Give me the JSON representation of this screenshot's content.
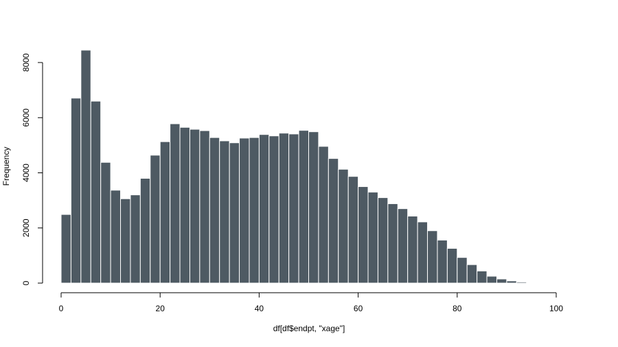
{
  "chart_data": {
    "type": "bar",
    "title": "",
    "xlabel": "df[df$endpt, \"xage\"]",
    "ylabel": "Frequency",
    "xlim": [
      0,
      100
    ],
    "ylim": [
      0,
      8500
    ],
    "bin_width": 2,
    "x_ticks": [
      0,
      20,
      40,
      60,
      80,
      100
    ],
    "y_ticks": [
      0,
      2000,
      4000,
      6000,
      8000
    ],
    "bar_color": "#4e5a63",
    "bar_edge_color": "#ffffff",
    "grid": false,
    "bins_start": [
      0,
      2,
      4,
      6,
      8,
      10,
      12,
      14,
      16,
      18,
      20,
      22,
      24,
      26,
      28,
      30,
      32,
      34,
      36,
      38,
      40,
      42,
      44,
      46,
      48,
      50,
      52,
      54,
      56,
      58,
      60,
      62,
      64,
      66,
      68,
      70,
      72,
      74,
      76,
      78,
      80,
      82,
      84,
      86,
      88,
      90,
      92,
      94
    ],
    "values": [
      2490,
      6710,
      8450,
      6600,
      4380,
      3370,
      3060,
      3200,
      3800,
      4640,
      5130,
      5780,
      5650,
      5580,
      5530,
      5280,
      5160,
      5090,
      5260,
      5280,
      5390,
      5340,
      5440,
      5410,
      5540,
      5490,
      4960,
      4520,
      4130,
      3870,
      3500,
      3300,
      3100,
      2880,
      2700,
      2430,
      2220,
      1900,
      1560,
      1260,
      930,
      670,
      440,
      250,
      150,
      80,
      40,
      0
    ]
  }
}
